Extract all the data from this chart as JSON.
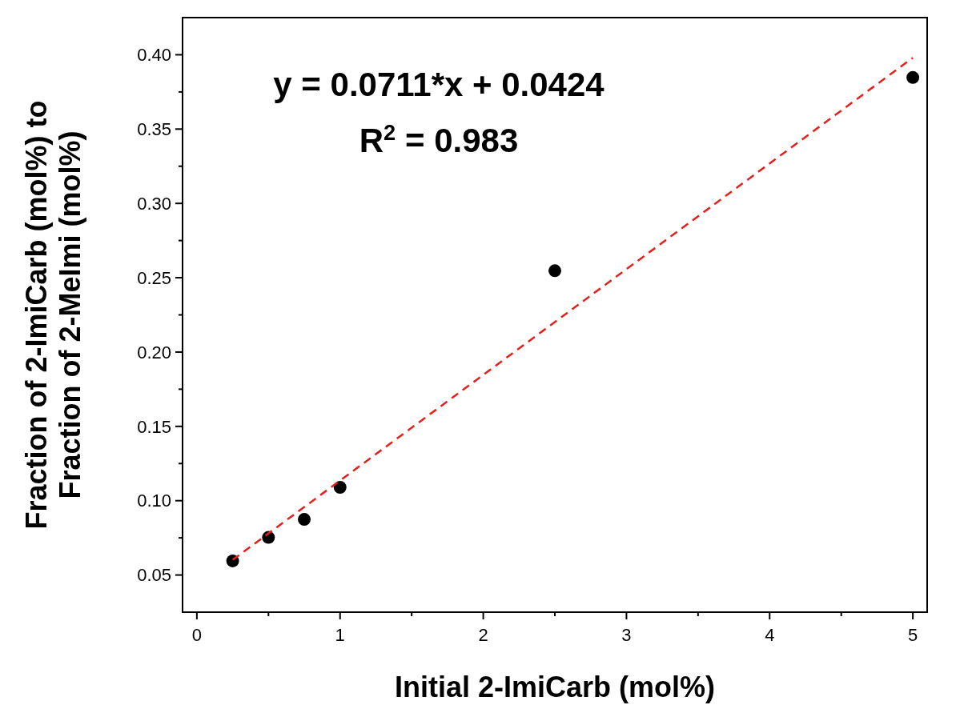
{
  "chart_data": {
    "type": "scatter",
    "xlabel": "Initial 2-ImiCarb (mol%)",
    "ylabel": "Fraction of 2-ImiCarb (mol%) to\nFraction of 2-MeImi (mol%)",
    "annotations": [
      "y = 0.0711*x + 0.0424",
      "R$^{2}$ = 0.983"
    ],
    "xlim": [
      -0.1,
      5.1
    ],
    "ylim": [
      0.025,
      0.425
    ],
    "xticks": [
      0,
      {
        "value": 0.5,
        "label": null
      },
      1,
      {
        "value": 1.5,
        "label": null
      },
      2,
      {
        "value": 2.5,
        "label": null
      },
      3,
      {
        "value": 3.5,
        "label": null
      },
      4,
      {
        "value": 4.5,
        "label": null
      },
      5
    ],
    "yticks": [
      {
        "value": 0.05,
        "label": "0.05"
      },
      {
        "value": 0.075,
        "label": null
      },
      {
        "value": 0.1,
        "label": "0.10"
      },
      {
        "value": 0.125,
        "label": null
      },
      {
        "value": 0.15,
        "label": "0.15"
      },
      {
        "value": 0.175,
        "label": null
      },
      {
        "value": 0.2,
        "label": "0.20"
      },
      {
        "value": 0.225,
        "label": null
      },
      {
        "value": 0.25,
        "label": "0.25"
      },
      {
        "value": 0.275,
        "label": null
      },
      {
        "value": 0.3,
        "label": "0.30"
      },
      {
        "value": 0.325,
        "label": null
      },
      {
        "value": 0.35,
        "label": "0.35"
      },
      {
        "value": 0.375,
        "label": null
      },
      {
        "value": 0.4,
        "label": "0.40"
      }
    ],
    "grid": false,
    "series": [
      {
        "color": "#000000",
        "marker": "circle",
        "x": [
          0.25,
          0.5,
          0.75,
          1,
          2.5,
          5
        ],
        "values": [
          0.0595,
          0.0753,
          0.0874,
          0.109,
          0.2547,
          0.3847
        ]
      },
      {
        "type": "line",
        "color": "#e8201c",
        "line_style": "dashed",
        "marker": "none",
        "x": [
          0.25,
          5
        ],
        "values": [
          0.0602,
          0.398
        ]
      }
    ]
  }
}
